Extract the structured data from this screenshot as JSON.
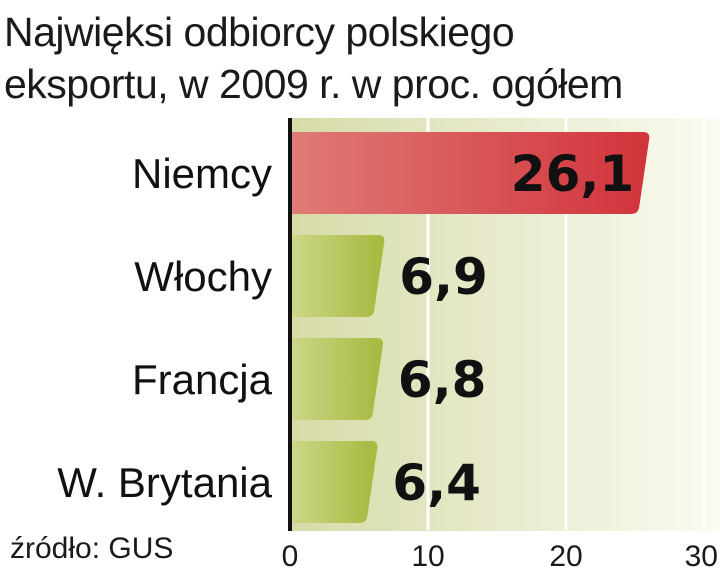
{
  "chart_data": {
    "type": "bar",
    "orientation": "horizontal",
    "title": "Najwięksi odbiorcy polskiego eksportu, w 2009 r. w proc. ogółem",
    "title_lines": [
      "Najwięksi odbiorcy polskiego",
      "eksportu, w 2009 r. w proc. ogółem"
    ],
    "categories": [
      "Niemcy",
      "Włochy",
      "Francja",
      "W. Brytania"
    ],
    "values": [
      26.1,
      6.9,
      6.8,
      6.4
    ],
    "value_labels": [
      "26,1",
      "6,9",
      "6,8",
      "6,4"
    ],
    "xlim": [
      0,
      30
    ],
    "xticks": [
      0,
      10,
      20,
      30
    ],
    "grid": true,
    "highlight_index": 0,
    "colors": {
      "highlight": "#d2333b",
      "highlight_light": "#df7b76",
      "bar": "#a6b83c",
      "bar_light": "#cdd78a",
      "bg_left": "#d6dba8",
      "bg_right": "#fbfbf2"
    },
    "source": "źródło: GUS"
  }
}
